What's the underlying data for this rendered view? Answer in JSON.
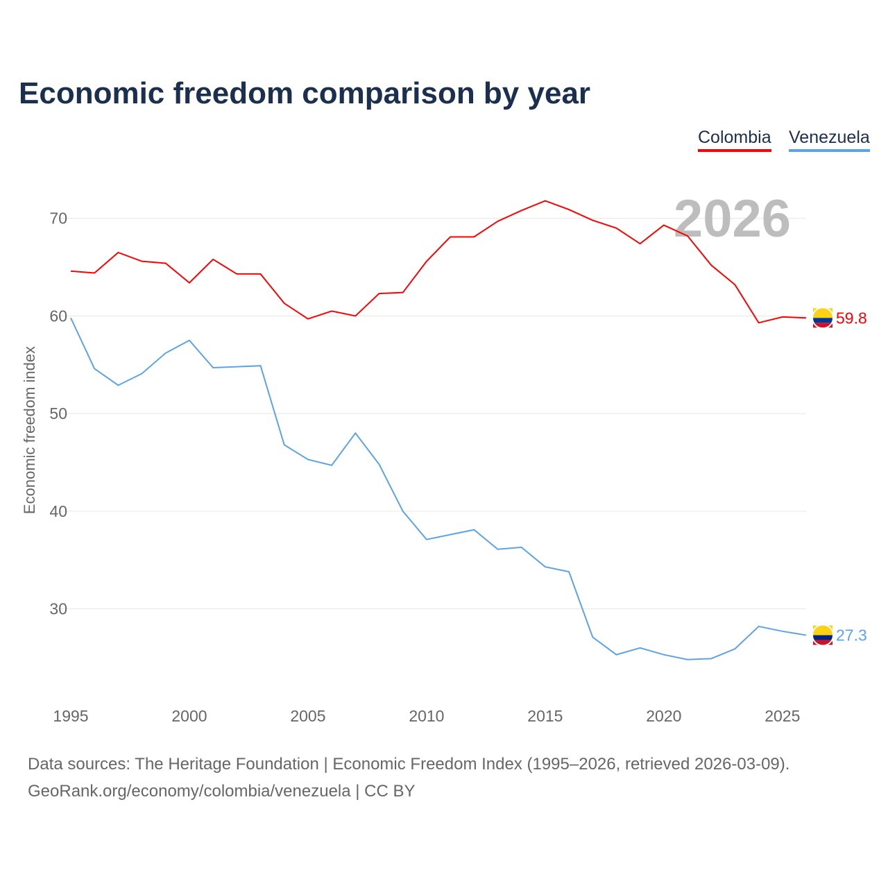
{
  "title": "Economic freedom comparison by year",
  "legend": [
    {
      "label": "Colombia",
      "color": "#ff0000"
    },
    {
      "label": "Venezuela",
      "color": "#5ba3e8"
    }
  ],
  "year_watermark": "2026",
  "sources": {
    "line1": "Data sources: The Heritage Foundation | Economic Freedom Index (1995–2026, retrieved 2026-03-09).",
    "line2": "GeoRank.org/economy/colombia/venezuela | CC BY"
  },
  "chart_data": {
    "type": "line",
    "title": "Economic freedom comparison by year",
    "xlabel": "",
    "ylabel": "Economic freedom index",
    "xlim": [
      1995,
      2026
    ],
    "ylim": [
      21.3,
      74.6
    ],
    "xticks": [
      1995,
      2000,
      2005,
      2010,
      2015,
      2020,
      2025
    ],
    "yticks": [
      30,
      40,
      50,
      60,
      70
    ],
    "grid": true,
    "legend_position": "top-right",
    "x": [
      1995,
      1996,
      1997,
      1998,
      1999,
      2000,
      2001,
      2002,
      2003,
      2004,
      2005,
      2006,
      2007,
      2008,
      2009,
      2010,
      2011,
      2012,
      2013,
      2014,
      2015,
      2016,
      2017,
      2018,
      2019,
      2020,
      2021,
      2022,
      2023,
      2024,
      2025,
      2026
    ],
    "series": [
      {
        "name": "Colombia",
        "color": "#ff0000",
        "end_label": "59.8",
        "values": [
          64.6,
          64.4,
          66.5,
          65.6,
          65.4,
          63.4,
          65.8,
          64.3,
          64.3,
          61.3,
          59.7,
          60.5,
          60.0,
          62.3,
          62.4,
          65.6,
          68.1,
          68.1,
          69.7,
          70.8,
          71.8,
          70.9,
          69.8,
          69.0,
          67.4,
          69.3,
          68.2,
          65.2,
          63.2,
          59.3,
          59.9,
          59.8
        ]
      },
      {
        "name": "Venezuela",
        "color": "#5ba3e8",
        "end_label": "27.3",
        "values": [
          59.8,
          54.6,
          52.9,
          54.1,
          56.2,
          57.5,
          54.7,
          54.8,
          54.9,
          46.8,
          45.3,
          44.7,
          48.0,
          44.8,
          40.0,
          37.1,
          37.6,
          38.1,
          36.1,
          36.3,
          34.3,
          33.8,
          27.1,
          25.3,
          26.0,
          25.3,
          24.8,
          24.9,
          25.9,
          28.2,
          27.7,
          27.3
        ]
      }
    ]
  }
}
